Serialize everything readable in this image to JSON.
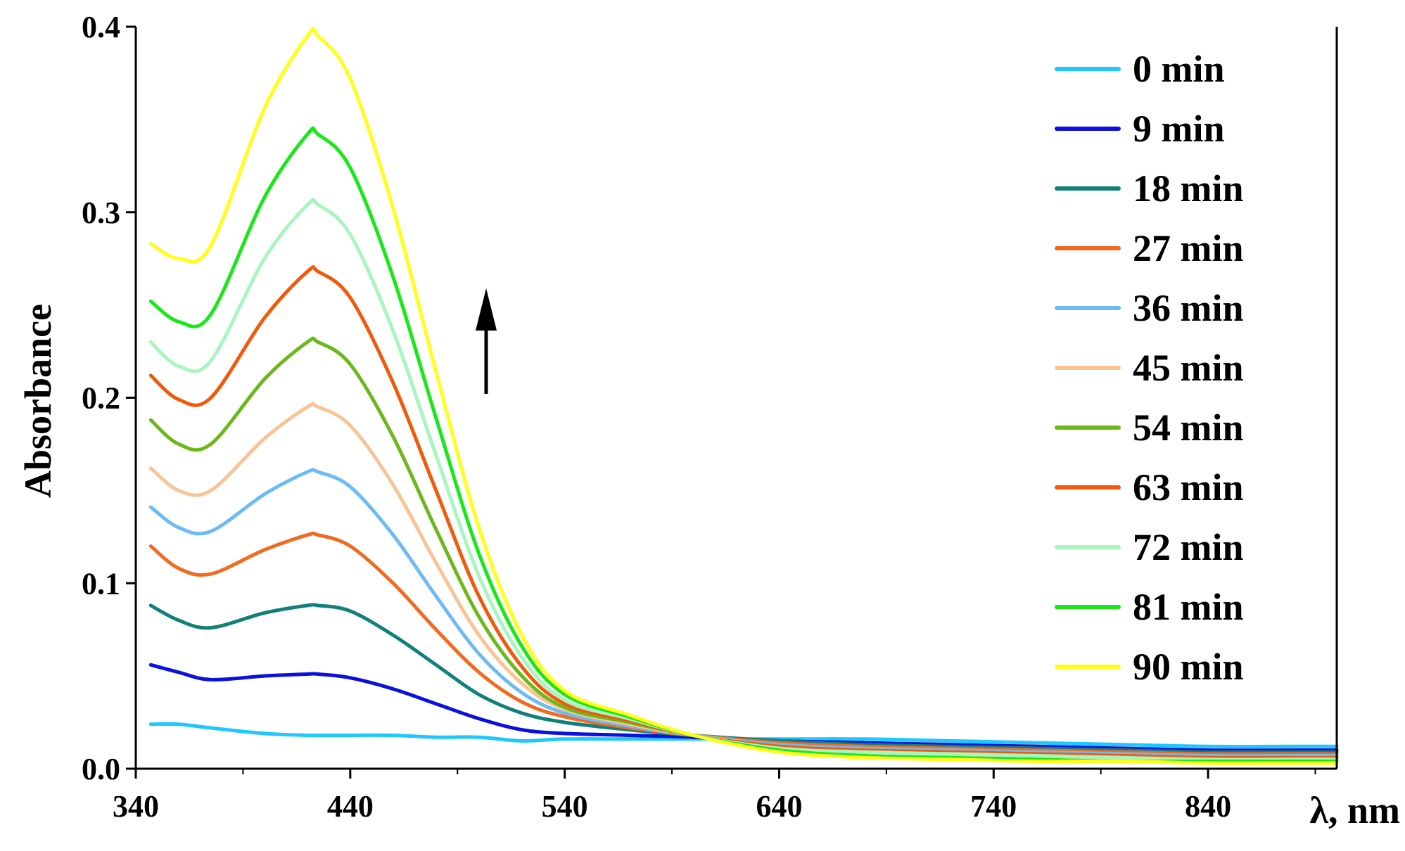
{
  "chart_data": {
    "type": "line",
    "xlabel": "λ, nm",
    "ylabel": "Absorbance",
    "xlim": [
      340,
      900
    ],
    "ylim": [
      0,
      0.4
    ],
    "x_ticks": [
      "340",
      "440",
      "540",
      "640",
      "740",
      "840"
    ],
    "y_ticks": [
      "0.0",
      "0.1",
      "0.2",
      "0.3",
      "0.4"
    ],
    "grid": false,
    "legend_position": "top-right",
    "annotation": "up-arrow",
    "x": [
      347,
      360,
      375,
      400,
      420,
      425,
      440,
      460,
      480,
      500,
      520,
      540,
      570,
      600,
      640,
      680,
      720,
      760,
      800,
      840,
      880,
      900
    ],
    "series": [
      {
        "name": "0 min",
        "color": "#1EC8FF",
        "values": [
          0.024,
          0.024,
          0.022,
          0.019,
          0.018,
          0.018,
          0.018,
          0.018,
          0.017,
          0.017,
          0.015,
          0.016,
          0.016,
          0.016,
          0.016,
          0.016,
          0.015,
          0.014,
          0.013,
          0.012,
          0.012,
          0.012
        ]
      },
      {
        "name": "9 min",
        "color": "#0A10E0",
        "values": [
          0.056,
          0.052,
          0.048,
          0.05,
          0.051,
          0.051,
          0.049,
          0.043,
          0.035,
          0.027,
          0.021,
          0.019,
          0.018,
          0.017,
          0.015,
          0.014,
          0.013,
          0.012,
          0.011,
          0.01,
          0.01,
          0.01
        ]
      },
      {
        "name": "18 min",
        "color": "#11807A",
        "values": [
          0.088,
          0.08,
          0.076,
          0.084,
          0.088,
          0.088,
          0.085,
          0.072,
          0.056,
          0.04,
          0.03,
          0.025,
          0.021,
          0.018,
          0.015,
          0.013,
          0.012,
          0.011,
          0.01,
          0.009,
          0.009,
          0.009
        ]
      },
      {
        "name": "27 min",
        "color": "#F26A1E",
        "values": [
          0.12,
          0.108,
          0.105,
          0.118,
          0.126,
          0.126,
          0.12,
          0.1,
          0.075,
          0.052,
          0.036,
          0.028,
          0.022,
          0.018,
          0.014,
          0.012,
          0.011,
          0.01,
          0.009,
          0.008,
          0.008,
          0.008
        ]
      },
      {
        "name": "36 min",
        "color": "#6CBBF5",
        "values": [
          0.141,
          0.13,
          0.128,
          0.148,
          0.16,
          0.16,
          0.152,
          0.126,
          0.093,
          0.062,
          0.041,
          0.03,
          0.023,
          0.018,
          0.013,
          0.011,
          0.01,
          0.009,
          0.008,
          0.007,
          0.007,
          0.007
        ]
      },
      {
        "name": "45 min",
        "color": "#F8C496",
        "values": [
          0.162,
          0.15,
          0.15,
          0.178,
          0.195,
          0.195,
          0.185,
          0.153,
          0.111,
          0.072,
          0.046,
          0.032,
          0.024,
          0.018,
          0.012,
          0.01,
          0.009,
          0.008,
          0.007,
          0.006,
          0.006,
          0.006
        ]
      },
      {
        "name": "54 min",
        "color": "#6CB81A",
        "values": [
          0.188,
          0.175,
          0.175,
          0.21,
          0.23,
          0.23,
          0.218,
          0.179,
          0.129,
          0.082,
          0.05,
          0.033,
          0.025,
          0.018,
          0.011,
          0.009,
          0.008,
          0.007,
          0.006,
          0.005,
          0.005,
          0.005
        ]
      },
      {
        "name": "63 min",
        "color": "#F25A0A",
        "values": [
          0.212,
          0.199,
          0.2,
          0.243,
          0.268,
          0.268,
          0.254,
          0.208,
          0.15,
          0.093,
          0.055,
          0.035,
          0.026,
          0.018,
          0.012,
          0.01,
          0.009,
          0.008,
          0.007,
          0.006,
          0.006,
          0.006
        ]
      },
      {
        "name": "72 min",
        "color": "#A8F5C0",
        "values": [
          0.23,
          0.217,
          0.22,
          0.275,
          0.304,
          0.304,
          0.288,
          0.236,
          0.169,
          0.104,
          0.06,
          0.037,
          0.027,
          0.018,
          0.011,
          0.009,
          0.008,
          0.007,
          0.006,
          0.005,
          0.005,
          0.005
        ]
      },
      {
        "name": "81 min",
        "color": "#18E818",
        "values": [
          0.252,
          0.241,
          0.245,
          0.308,
          0.342,
          0.342,
          0.324,
          0.265,
          0.189,
          0.116,
          0.066,
          0.04,
          0.028,
          0.018,
          0.01,
          0.007,
          0.006,
          0.005,
          0.004,
          0.004,
          0.004,
          0.004
        ]
      },
      {
        "name": "90 min",
        "color": "#FFFF1A",
        "values": [
          0.283,
          0.275,
          0.282,
          0.356,
          0.395,
          0.395,
          0.372,
          0.302,
          0.214,
          0.13,
          0.072,
          0.042,
          0.029,
          0.018,
          0.009,
          0.006,
          0.005,
          0.004,
          0.004,
          0.003,
          0.003,
          0.003
        ]
      }
    ]
  }
}
